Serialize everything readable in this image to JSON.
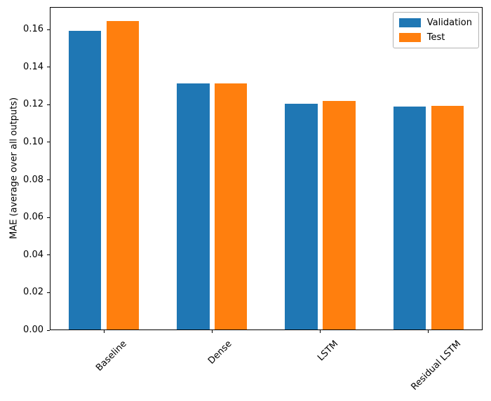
{
  "chart_data": {
    "type": "bar",
    "title": "",
    "xlabel": "",
    "ylabel": "MAE (average over all outputs)",
    "categories": [
      "Baseline",
      "Dense",
      "LSTM",
      "Residual LSTM"
    ],
    "series": [
      {
        "name": "Validation",
        "color": "#1f77b4",
        "values": [
          0.159,
          0.131,
          0.12,
          0.1185
        ]
      },
      {
        "name": "Test",
        "color": "#ff7f0e",
        "values": [
          0.164,
          0.131,
          0.1215,
          0.119
        ]
      }
    ],
    "ylim": [
      0,
      0.172
    ],
    "ytick_values": [
      0.0,
      0.02,
      0.04,
      0.06,
      0.08,
      0.1,
      0.12,
      0.14,
      0.16
    ],
    "yticks": [
      "0.00",
      "0.02",
      "0.04",
      "0.06",
      "0.08",
      "0.10",
      "0.12",
      "0.14",
      "0.16"
    ],
    "xtick_rotation_deg": 45,
    "grid": false,
    "legend": {
      "position": "upper right",
      "entries": [
        "Validation",
        "Test"
      ]
    }
  },
  "colors": {
    "axis": "#000000",
    "background": "#ffffff",
    "legend_border": "#b3b3b3",
    "series_blue": "#1f77b4",
    "series_orange": "#ff7f0e"
  }
}
